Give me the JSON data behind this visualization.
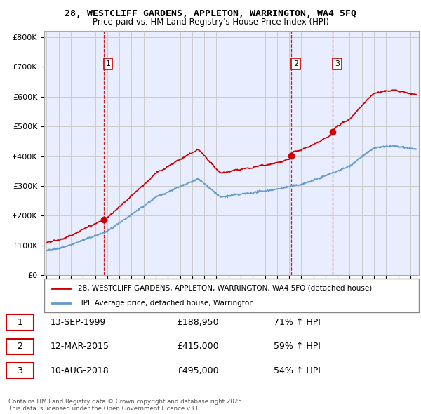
{
  "title1": "28, WESTCLIFF GARDENS, APPLETON, WARRINGTON, WA4 5FQ",
  "title2": "Price paid vs. HM Land Registry's House Price Index (HPI)",
  "ylim": [
    0,
    820000
  ],
  "yticks": [
    0,
    100000,
    200000,
    300000,
    400000,
    500000,
    600000,
    700000,
    800000
  ],
  "ytick_labels": [
    "£0",
    "£100K",
    "£200K",
    "£300K",
    "£400K",
    "£500K",
    "£600K",
    "£700K",
    "£800K"
  ],
  "sale_color": "#cc0000",
  "hpi_color": "#6699cc",
  "sale_label": "28, WESTCLIFF GARDENS, APPLETON, WARRINGTON, WA4 5FQ (detached house)",
  "hpi_label": "HPI: Average price, detached house, Warrington",
  "transactions": [
    {
      "num": 1,
      "date": "13-SEP-1999",
      "price": 188950,
      "hpi_pct": "71% ↑ HPI",
      "year": 1999.71
    },
    {
      "num": 2,
      "date": "12-MAR-2015",
      "price": 415000,
      "hpi_pct": "59% ↑ HPI",
      "year": 2015.19
    },
    {
      "num": 3,
      "date": "10-AUG-2018",
      "price": 495000,
      "hpi_pct": "54% ↑ HPI",
      "year": 2018.61
    }
  ],
  "vline_color": "#cc0000",
  "grid_color": "#cccccc",
  "bg_color": "#e8eeff",
  "footer": "Contains HM Land Registry data © Crown copyright and database right 2025.\nThis data is licensed under the Open Government Licence v3.0.",
  "xmin": 1994.8,
  "xmax": 2025.7
}
